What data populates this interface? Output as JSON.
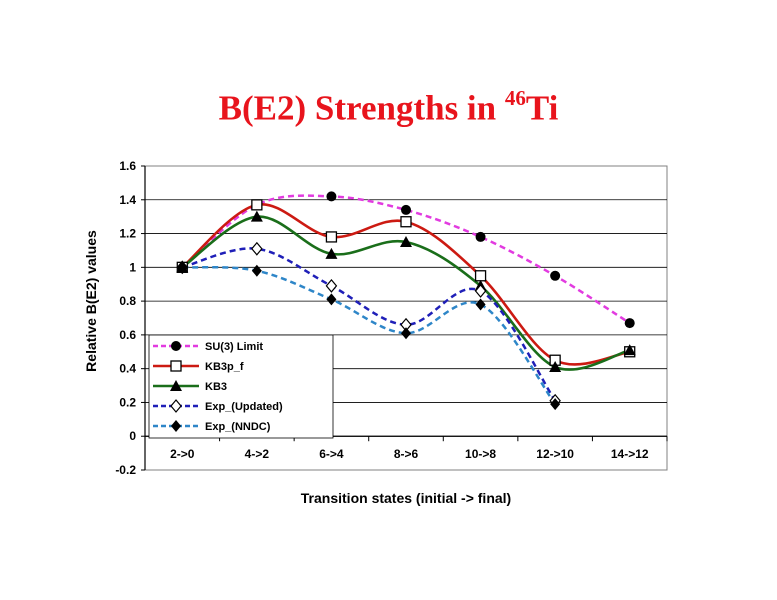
{
  "chart_data": {
    "type": "line",
    "title": "B(E2) Strengths in ",
    "title_superscript": "46",
    "title_suffix": "Ti",
    "title_color": "#e8141c",
    "xlabel": "Transition states (initial -> final)",
    "ylabel": "Relative B(E2) values",
    "ylim": [
      -0.2,
      1.6
    ],
    "yticks": [
      "-0.2",
      "0",
      "0.2",
      "0.4",
      "0.6",
      "0.8",
      "1",
      "1.2",
      "1.4",
      "1.6"
    ],
    "categories": [
      "2->0",
      "4->2",
      "6->4",
      "8->6",
      "10->8",
      "12->10",
      "14->12"
    ],
    "grid": true,
    "legend_position": "bottom-left",
    "series": [
      {
        "name": "SU(3) Limit",
        "values": [
          1.0,
          null,
          1.42,
          1.34,
          1.18,
          0.95,
          0.67
        ],
        "color": "#e23be0",
        "dash": "dashed",
        "marker": "filled-circle",
        "curve": [
          1.0,
          1.37,
          1.42,
          1.34,
          1.18,
          0.95,
          0.67
        ]
      },
      {
        "name": "KB3p_f",
        "values": [
          1.0,
          1.37,
          1.18,
          1.27,
          0.95,
          0.45,
          0.5
        ],
        "color": "#cc1a12",
        "dash": "solid",
        "marker": "open-square"
      },
      {
        "name": "KB3",
        "values": [
          1.0,
          1.3,
          1.08,
          1.15,
          0.89,
          0.41,
          0.51
        ],
        "color": "#1a6e1a",
        "dash": "solid",
        "marker": "filled-triangle"
      },
      {
        "name": "Exp_(Updated)",
        "values": [
          1.0,
          1.11,
          0.89,
          0.66,
          0.86,
          0.21,
          null
        ],
        "color": "#1f1fb8",
        "dash": "dashed",
        "marker": "open-diamond"
      },
      {
        "name": "Exp_(NNDC)",
        "values": [
          1.0,
          0.98,
          0.81,
          0.61,
          0.78,
          0.19,
          null
        ],
        "color": "#2e86c8",
        "dash": "dashed",
        "marker": "filled-diamond"
      }
    ]
  }
}
